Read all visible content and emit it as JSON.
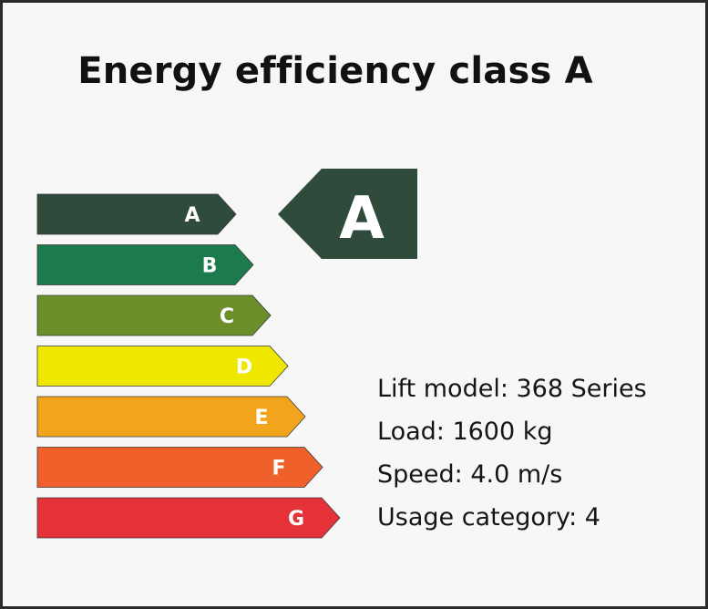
{
  "title": "Energy efficiency class A",
  "scale": [
    {
      "letter": "A",
      "color": "#2f4b3c"
    },
    {
      "letter": "B",
      "color": "#1d7a4d"
    },
    {
      "letter": "C",
      "color": "#6b8e2a"
    },
    {
      "letter": "D",
      "color": "#f0e700"
    },
    {
      "letter": "E",
      "color": "#f2a51c"
    },
    {
      "letter": "F",
      "color": "#f0602a"
    },
    {
      "letter": "G",
      "color": "#e53238"
    }
  ],
  "rating": {
    "letter": "A",
    "color": "#2f4b3c"
  },
  "specs": {
    "model": "Lift model: 368 Series",
    "load": "Load: 1600 kg",
    "speed": "Speed: 4.0 m/s",
    "usage": "Usage category: 4"
  }
}
